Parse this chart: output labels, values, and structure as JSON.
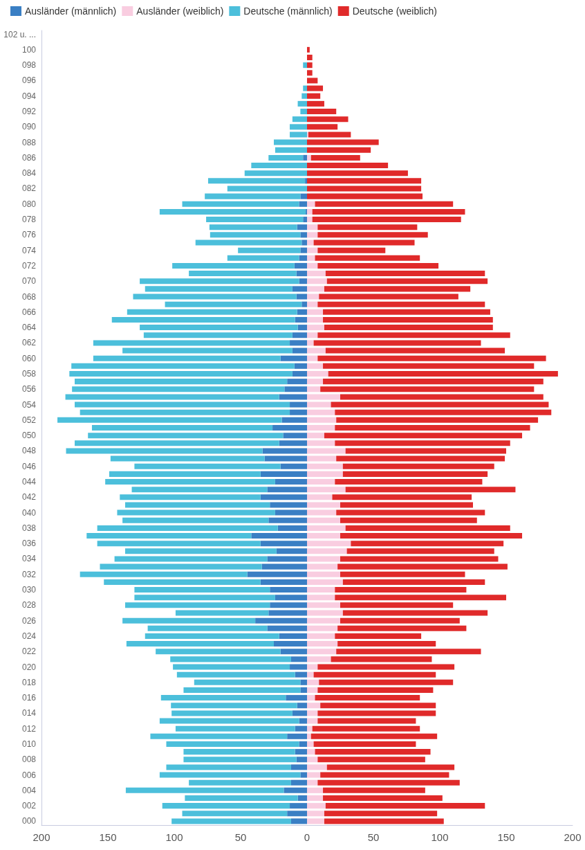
{
  "chart_data": {
    "type": "bar",
    "orientation": "horizontal",
    "stacked": true,
    "legend": "top",
    "grid": false,
    "categories": [
      "102 u. ...",
      null,
      "100",
      null,
      "098",
      null,
      "096",
      null,
      "094",
      null,
      "092",
      null,
      "090",
      null,
      "088",
      null,
      "086",
      null,
      "084",
      null,
      "082",
      null,
      "080",
      null,
      "078",
      null,
      "076",
      null,
      "074",
      null,
      "072",
      null,
      "070",
      null,
      "068",
      null,
      "066",
      null,
      "064",
      null,
      "062",
      null,
      "060",
      null,
      "058",
      null,
      "056",
      null,
      "054",
      null,
      "052",
      null,
      "050",
      null,
      "048",
      null,
      "046",
      null,
      "044",
      null,
      "042",
      null,
      "040",
      null,
      "038",
      null,
      "036",
      null,
      "034",
      null,
      "032",
      null,
      "030",
      null,
      "028",
      null,
      "026",
      null,
      "024",
      null,
      "022",
      null,
      "020",
      null,
      "018",
      null,
      "016",
      null,
      "014",
      null,
      "012",
      null,
      "010",
      null,
      "008",
      null,
      "006",
      null,
      "004",
      null,
      "002",
      null,
      "000"
    ],
    "xlim": [
      -200,
      200
    ],
    "xticks": [
      {
        "value": -200,
        "label": "200"
      },
      {
        "value": -150,
        "label": "150"
      },
      {
        "value": -100,
        "label": "100"
      },
      {
        "value": -50,
        "label": "50"
      },
      0,
      50,
      100,
      150,
      200
    ],
    "series": [
      {
        "name": "Ausländer (männlich)",
        "color": "#3a7fc4",
        "values": [
          0,
          0,
          0,
          0,
          0,
          0,
          0,
          0,
          0,
          0,
          0,
          0,
          0,
          0,
          0,
          0,
          -3,
          0,
          0,
          -1.5,
          0,
          -5,
          -6,
          -1,
          -3,
          -7.5,
          -5,
          -4,
          -5,
          -6,
          -9.5,
          -8,
          -6,
          -11,
          -8,
          -4,
          -7.5,
          -9,
          -7,
          -11,
          -13,
          -11,
          -20,
          -9.5,
          -11,
          -15,
          -17,
          -21,
          -13,
          -13,
          -19,
          -26,
          -18,
          -21,
          -33.5,
          -32,
          -20,
          -35,
          -24,
          -30,
          -35,
          -28,
          -24,
          -29,
          -22,
          -42,
          -35,
          -23,
          -30,
          -34,
          -45,
          -35,
          -28,
          -24,
          -28,
          -29,
          -39,
          -30,
          -21,
          -25,
          -20,
          -12,
          -13,
          -9,
          -5,
          -5,
          -16,
          -7.5,
          -11,
          -6,
          -9,
          -15,
          -6,
          -9,
          -8,
          -12,
          -5,
          -12,
          -17.5,
          -7,
          -13,
          -15,
          -12
        ]
      },
      {
        "name": "Ausländer (weiblich)",
        "color": "#f9cde0",
        "values": [
          0,
          0,
          0,
          0,
          0,
          0,
          0,
          0,
          0,
          0,
          0,
          0,
          0,
          1,
          0,
          0,
          3,
          0,
          0,
          0,
          0,
          0,
          6,
          4,
          4,
          8,
          8,
          5,
          8,
          6,
          8,
          14,
          15,
          13,
          9,
          8,
          12,
          12,
          13,
          8,
          5,
          14,
          8,
          12,
          16,
          12,
          10,
          25,
          18,
          21,
          22,
          21,
          13,
          21,
          29,
          22,
          27,
          27,
          21,
          29,
          19,
          25,
          22,
          25,
          29,
          25,
          33,
          30,
          25,
          23,
          25,
          27,
          21,
          21,
          25,
          27,
          25,
          23,
          21,
          23,
          22,
          18,
          8,
          5,
          9,
          8,
          6,
          10,
          8,
          8,
          4,
          3,
          5,
          6,
          8,
          15,
          10,
          8,
          12,
          12,
          14,
          13,
          13
        ]
      },
      {
        "name": "Deutsche (männlich)",
        "color": "#4cbfdb",
        "values": [
          0,
          0,
          0,
          0,
          -3,
          0,
          0,
          -3,
          -4,
          -7,
          -5,
          -11,
          -13,
          -13,
          -25,
          -24,
          -26,
          -42,
          -47,
          -73,
          -60,
          -72,
          -88,
          -110,
          -73,
          -66,
          -68,
          -80,
          -47,
          -54,
          -92,
          -81,
          -120,
          -111,
          -123,
          -103,
          -128,
          -138,
          -119,
          -112,
          -148,
          -128,
          -141,
          -168,
          -168,
          -160,
          -160,
          -161,
          -162,
          -158,
          -169,
          -136,
          -147,
          -154,
          -148,
          -116,
          -110,
          -114,
          -128,
          -102,
          -106,
          -109,
          -119,
          -110,
          -136,
          -124,
          -123,
          -114,
          -115,
          -122,
          -126,
          -118,
          -102,
          -106,
          -109,
          -70,
          -100,
          -90,
          -101,
          -111,
          -94,
          -91,
          -88,
          -89,
          -80,
          -88,
          -94,
          -95,
          -91,
          -105,
          -90,
          -103,
          -100,
          -84,
          -85,
          -94,
          -106,
          -77,
          -119,
          -85,
          -96,
          -79,
          -90
        ]
      },
      {
        "name": "Deutsche (weiblich)",
        "color": "#e02a2a",
        "values": [
          0,
          0,
          2,
          4,
          4,
          4,
          8,
          12,
          10,
          13,
          22,
          31,
          23,
          32,
          54,
          48,
          37,
          61,
          76,
          86,
          86,
          87,
          104,
          115,
          112,
          75,
          83,
          76,
          51,
          79,
          91,
          120,
          121,
          110,
          105,
          126,
          126,
          128,
          127,
          145,
          126,
          135,
          172,
          159,
          173,
          166,
          161,
          153,
          164,
          163,
          152,
          147,
          149,
          132,
          121,
          127,
          114,
          109,
          111,
          128,
          105,
          100,
          112,
          103,
          124,
          137,
          115,
          111,
          119,
          128,
          94,
          107,
          99,
          129,
          85,
          109,
          90,
          97,
          65,
          74,
          109,
          76,
          103,
          92,
          101,
          87,
          79,
          87,
          89,
          74,
          81,
          95,
          77,
          87,
          81,
          96,
          97,
          107,
          77,
          90,
          120,
          85,
          90
        ]
      }
    ]
  }
}
